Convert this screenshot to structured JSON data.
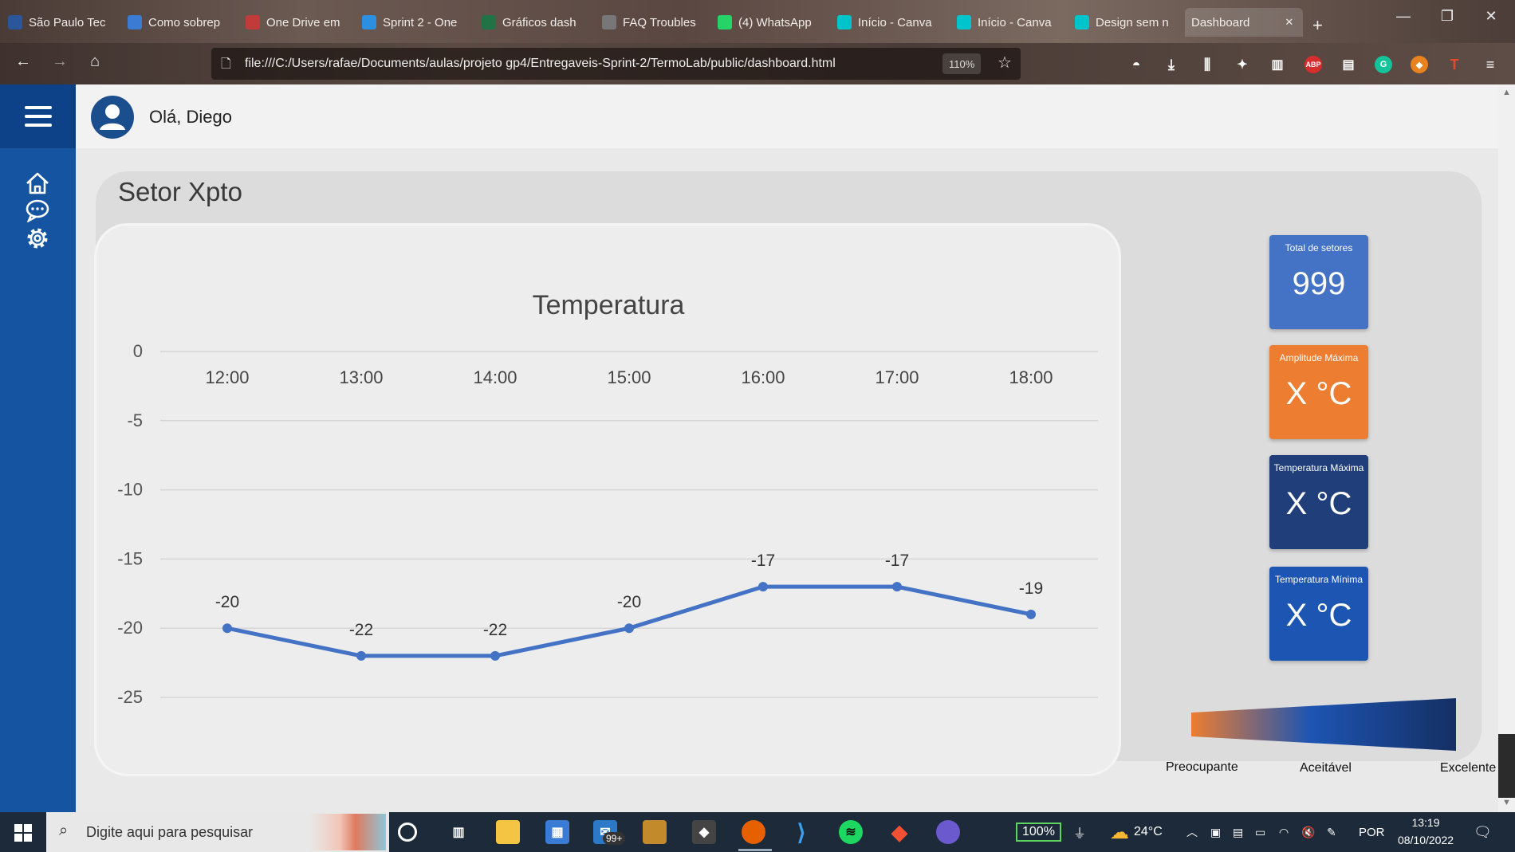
{
  "browser": {
    "tabs": [
      {
        "label": "São Paulo Tec",
        "color": "#2b579a"
      },
      {
        "label": "Como sobrep",
        "color": "#3b7bd4"
      },
      {
        "label": "One Drive em",
        "color": "#c13b3b"
      },
      {
        "label": "Sprint 2 - One",
        "color": "#2d8fe0"
      },
      {
        "label": "Gráficos dash",
        "color": "#217346"
      },
      {
        "label": "FAQ Troubles",
        "color": "#777777"
      },
      {
        "label": "(4) WhatsApp",
        "color": "#25d366"
      },
      {
        "label": "Início - Canva",
        "color": "#00c4cc"
      },
      {
        "label": "Início - Canva",
        "color": "#00c4cc"
      },
      {
        "label": "Design sem n",
        "color": "#00c4cc"
      },
      {
        "label": "Dashboard",
        "color": ""
      }
    ],
    "new_tab": "+",
    "url": "file:///C:/Users/rafae/Documents/aulas/projeto gp4/Entregaveis-Sprint-2/TermoLab/public/dashboard.html",
    "zoom": "110%"
  },
  "header": {
    "greeting": "Olá, Diego"
  },
  "sidebar": {
    "items": [
      "home-icon",
      "chat-icon",
      "settings-icon"
    ]
  },
  "section_title": "Setor Xpto",
  "kpis": [
    {
      "label": "Total de setores",
      "value": "999",
      "color": "#4472c4"
    },
    {
      "label": "Amplitude Máxima",
      "value": "X °C",
      "color": "#ed7d31"
    },
    {
      "label": "Temperatura Máxima",
      "value": "X °C",
      "color": "#1f3e7a"
    },
    {
      "label": "Temperatura Mínima",
      "value": "X °C",
      "color": "#1d55b3"
    }
  ],
  "legend_scale": {
    "labels": [
      "Preocupante",
      "Aceitável",
      "Excelente"
    ]
  },
  "chart_data": {
    "type": "line",
    "title": "Temperatura",
    "categories": [
      "12:00",
      "13:00",
      "14:00",
      "15:00",
      "16:00",
      "17:00",
      "18:00"
    ],
    "series": [
      {
        "values": [
          -20,
          -22,
          -22,
          -20,
          -17,
          -17,
          -19
        ],
        "color": "#4472c4"
      }
    ],
    "ylim": [
      -25,
      0
    ],
    "yticks": [
      0,
      -5,
      -10,
      -15,
      -20,
      -25
    ],
    "grid": true,
    "data_labels": true
  },
  "taskbar": {
    "search_placeholder": "Digite aqui para pesquisar",
    "mail_badge": "99+",
    "battery": "100%",
    "weather": "24°C",
    "language": "POR",
    "time": "13:19",
    "date": "08/10/2022"
  }
}
